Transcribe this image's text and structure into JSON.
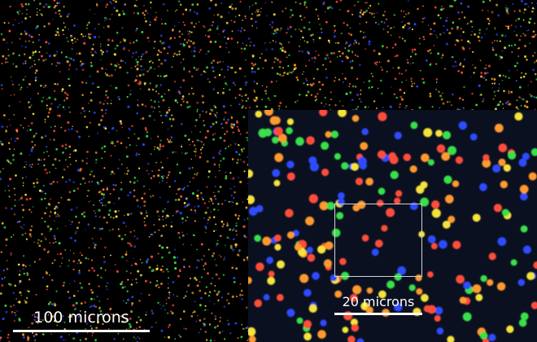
{
  "image": {
    "palette": [
      "#2e4bff",
      "#39e04a",
      "#f5e33a",
      "#ff4d3a",
      "#ff9a2e"
    ],
    "background": "#000000",
    "inset_background": "#0a1020"
  },
  "main_view": {
    "scale_bar_label": "100 microns"
  },
  "inset_view": {
    "scale_bar_label": "20 microns"
  }
}
